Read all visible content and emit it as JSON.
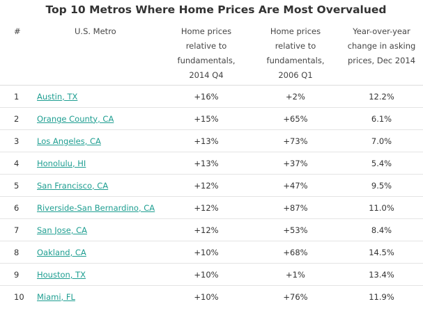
{
  "title": "Top 10 Metros Where Home Prices Are Most Overvalued",
  "chart_data": {
    "type": "table",
    "title": "Top 10 Metros Where Home Prices Are Most Overvalued",
    "columns": [
      "#",
      "U.S. Metro",
      "Home prices relative to fundamentals, 2014 Q4",
      "Home prices relative to fundamentals, 2006 Q1",
      "Year-over-year change in asking prices, Dec 2014"
    ],
    "header_lines": [
      [
        "#"
      ],
      [
        "U.S. Metro"
      ],
      [
        "Home prices",
        "relative to",
        "fundamentals,",
        "2014 Q4"
      ],
      [
        "Home prices",
        "relative to",
        "fundamentals,",
        "2006 Q1"
      ],
      [
        "Year-over-year",
        "change in asking",
        "prices, Dec 2014"
      ]
    ],
    "rows": [
      {
        "rank": "1",
        "metro": "Austin, TX",
        "q4_2014": "+16%",
        "q1_2006": "+2%",
        "yoy": "12.2%"
      },
      {
        "rank": "2",
        "metro": "Orange County, CA",
        "q4_2014": "+15%",
        "q1_2006": "+65%",
        "yoy": "6.1%"
      },
      {
        "rank": "3",
        "metro": "Los Angeles, CA",
        "q4_2014": "+13%",
        "q1_2006": "+73%",
        "yoy": "7.0%"
      },
      {
        "rank": "4",
        "metro": "Honolulu, HI",
        "q4_2014": "+13%",
        "q1_2006": "+37%",
        "yoy": "5.4%"
      },
      {
        "rank": "5",
        "metro": "San Francisco, CA",
        "q4_2014": "+12%",
        "q1_2006": "+47%",
        "yoy": "9.5%"
      },
      {
        "rank": "6",
        "metro": "Riverside-San Bernardino, CA",
        "q4_2014": "+12%",
        "q1_2006": "+87%",
        "yoy": "11.0%"
      },
      {
        "rank": "7",
        "metro": "San Jose, CA",
        "q4_2014": "+12%",
        "q1_2006": "+53%",
        "yoy": "8.4%"
      },
      {
        "rank": "8",
        "metro": "Oakland, CA",
        "q4_2014": "+10%",
        "q1_2006": "+68%",
        "yoy": "14.5%"
      },
      {
        "rank": "9",
        "metro": "Houston, TX",
        "q4_2014": "+10%",
        "q1_2006": "+1%",
        "yoy": "13.4%"
      },
      {
        "rank": "10",
        "metro": "Miami, FL",
        "q4_2014": "+10%",
        "q1_2006": "+76%",
        "yoy": "11.9%"
      }
    ]
  },
  "colors": {
    "link": "#1e9e91",
    "text": "#333333",
    "rule": "#e4e4e4"
  }
}
